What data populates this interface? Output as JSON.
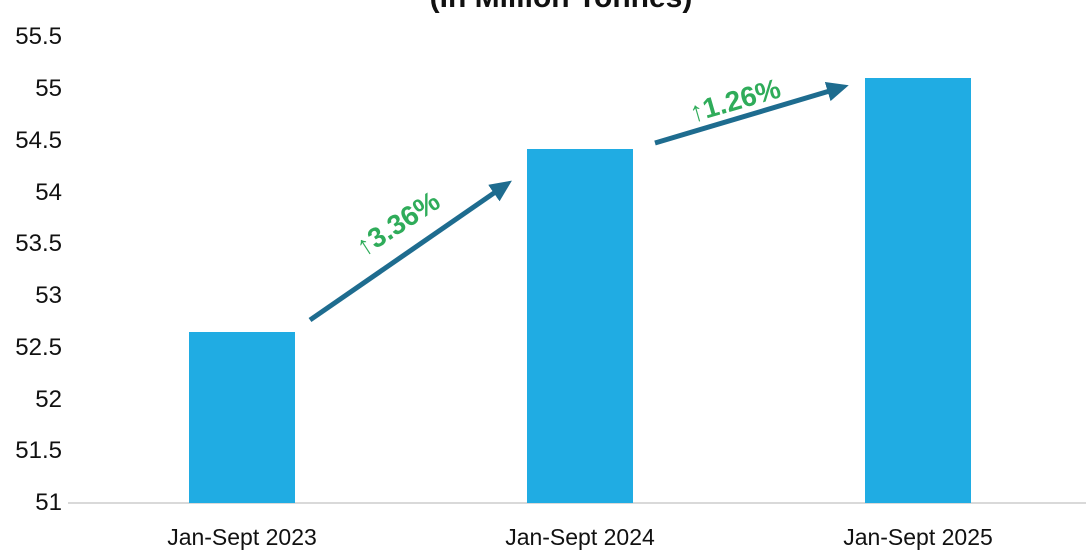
{
  "chart_data": {
    "type": "bar",
    "title": "(In Million Tonnes)",
    "title_note": "title line is cropped at the top edge; only the bottom of the glyphs is visible",
    "categories": [
      "Jan-Sept 2023",
      "Jan-Sept 2024",
      "Jan-Sept 2025"
    ],
    "values": [
      52.65,
      54.42,
      55.11
    ],
    "xlabel": "",
    "ylabel": "",
    "ylim": [
      51,
      55.5
    ],
    "ytick_step": 0.5,
    "yticks": [
      55.5,
      55,
      54.5,
      54,
      53.5,
      53,
      52.5,
      52,
      51.5,
      51
    ],
    "grid": false,
    "legend": "none",
    "annotations": [
      {
        "text": "↑3.36%",
        "from_category": "Jan-Sept 2023",
        "to_category": "Jan-Sept 2024",
        "rotation_deg": -33
      },
      {
        "text": "↑1.26%",
        "from_category": "Jan-Sept 2024",
        "to_category": "Jan-Sept 2025",
        "rotation_deg": -16
      }
    ],
    "colors": {
      "bar": "#20ace3",
      "arrow": "#1e6c8f",
      "annotation_text": "#2fac5a",
      "axis_line": "#d9d9d9",
      "text": "#111111"
    }
  }
}
